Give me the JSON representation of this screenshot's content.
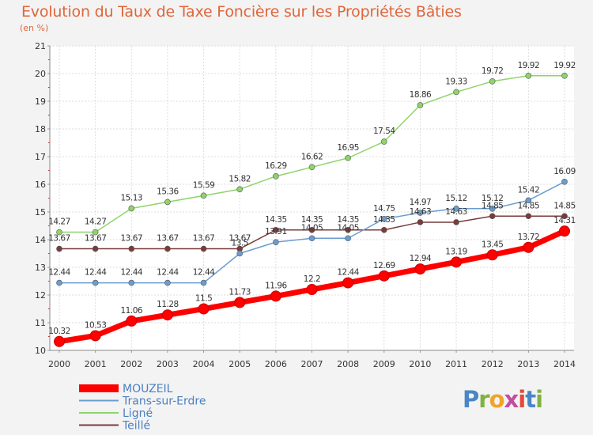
{
  "title": "Evolution du Taux de Taxe Foncière sur les Propriétés Bâties",
  "subtitle": "(en %)",
  "logo": [
    "P",
    "r",
    "o",
    "x",
    "i",
    "t",
    "i"
  ],
  "chart_data": {
    "type": "line",
    "x": [
      2000,
      2001,
      2002,
      2003,
      2004,
      2005,
      2006,
      2007,
      2008,
      2009,
      2010,
      2011,
      2012,
      2013,
      2014
    ],
    "ylim": [
      10,
      21
    ],
    "yticks": [
      10,
      11,
      12,
      13,
      14,
      15,
      16,
      17,
      18,
      19,
      20,
      21
    ],
    "grid": true,
    "legend_position": "bottom-left",
    "series": [
      {
        "name": "MOUZEIL",
        "color": "#ff0000",
        "values": [
          10.32,
          10.53,
          11.06,
          11.28,
          11.5,
          11.73,
          11.96,
          12.2,
          12.44,
          12.69,
          12.94,
          13.19,
          13.45,
          13.72,
          14.31
        ],
        "labels": [
          "10.32",
          "10.53",
          "11.06",
          "11.28",
          "11.5",
          "11.73",
          "11.96",
          "12.2",
          "12.44",
          "12.69",
          "12.94",
          "13.19",
          "13.45",
          "13.72",
          "14.31"
        ]
      },
      {
        "name": "Trans-sur-Erdre",
        "color": "#6a9dd0",
        "values": [
          12.44,
          12.44,
          12.44,
          12.44,
          12.44,
          13.5,
          13.91,
          14.05,
          14.05,
          14.75,
          14.97,
          15.12,
          15.12,
          15.42,
          16.09
        ],
        "labels": [
          "12.44",
          "12.44",
          "12.44",
          "12.44",
          "12.44",
          "13.5",
          "13.91",
          "14.05",
          "14.05",
          "14.75",
          "14.97",
          "15.12",
          "15.12",
          "15.42",
          "16.09"
        ]
      },
      {
        "name": "Ligné",
        "color": "#8fd46a",
        "values": [
          14.27,
          14.27,
          15.13,
          15.36,
          15.59,
          15.82,
          16.29,
          16.62,
          16.95,
          17.54,
          18.86,
          19.33,
          19.72,
          19.92,
          19.92
        ],
        "labels": [
          "14.27",
          "14.27",
          "15.13",
          "15.36",
          "15.59",
          "15.82",
          "16.29",
          "16.62",
          "16.95",
          "17.54",
          "18.86",
          "19.33",
          "19.72",
          "19.92",
          "19.92"
        ]
      },
      {
        "name": "Teillé",
        "color": "#7a3b3b",
        "values": [
          13.67,
          13.67,
          13.67,
          13.67,
          13.67,
          13.67,
          14.35,
          14.35,
          14.35,
          14.35,
          14.63,
          14.63,
          14.85,
          14.85,
          14.85
        ],
        "labels": [
          "13.67",
          "13.67",
          "13.67",
          "13.67",
          "13.67",
          "13.67",
          "14.35",
          "14.35",
          "14.35",
          "14.35",
          "14.63",
          "14.63",
          "14.85",
          "14.85",
          "14.85"
        ]
      }
    ]
  }
}
